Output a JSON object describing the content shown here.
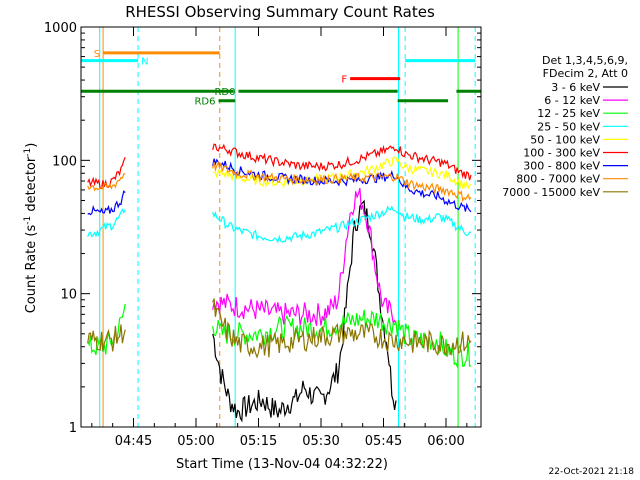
{
  "chart_data": {
    "type": "line",
    "title": "RHESSI Observing Summary Count Rates",
    "xlabel": "Start Time (13-Nov-04 04:32:22)",
    "ylabel": "Count Rate (s⁻¹ detector⁻¹)",
    "ylabel_parts": {
      "main": "Count Rate (s",
      "exp1": "-1",
      "mid": " detector",
      "exp2": "-1",
      "end": ")"
    },
    "yscale": "log",
    "xlim": [
      32.4,
      128.4
    ],
    "ylim": [
      1,
      1000
    ],
    "x_units": "minutes after 04:00 UT",
    "x_ticks": [
      {
        "x": 45,
        "label": "04:45"
      },
      {
        "x": 60,
        "label": "05:00"
      },
      {
        "x": 75,
        "label": "05:15"
      },
      {
        "x": 90,
        "label": "05:30"
      },
      {
        "x": 105,
        "label": "05:45"
      },
      {
        "x": 120,
        "label": "06:00"
      }
    ],
    "y_ticks": [
      {
        "y": 1,
        "label": "1"
      },
      {
        "y": 10,
        "label": "10"
      },
      {
        "y": 100,
        "label": "100"
      },
      {
        "y": 1000,
        "label": "1000"
      }
    ],
    "legend_header": [
      "Det 1,3,4,5,6,9,",
      "FDecim 2, Att 0"
    ],
    "legend_position": "right",
    "series": [
      {
        "name": "3 - 6 keV",
        "color": "#000000",
        "x": [
          36,
          37,
          38,
          39,
          40,
          41,
          42,
          43,
          64,
          66,
          68,
          70,
          72,
          74,
          76,
          78,
          80,
          82,
          84,
          86,
          88,
          90,
          92,
          94,
          95,
          96,
          97,
          98,
          99,
          100,
          101,
          102,
          103,
          104,
          105,
          106,
          107,
          108
        ],
        "values": [
          null,
          null,
          null,
          null,
          null,
          null,
          null,
          null,
          5,
          2.5,
          1.6,
          1.3,
          1.4,
          1.5,
          1.6,
          1.4,
          1.3,
          1.5,
          1.6,
          2,
          1.7,
          1.6,
          2,
          2.6,
          4,
          8,
          16,
          30,
          40,
          45,
          38,
          30,
          18,
          10,
          6,
          4,
          2,
          1.5
        ]
      },
      {
        "name": "6 - 12 keV",
        "color": "#ff00ff",
        "x": [
          36,
          37,
          38,
          39,
          40,
          41,
          42,
          43,
          64,
          66,
          70,
          75,
          80,
          85,
          90,
          92,
          94,
          95,
          96,
          97,
          98,
          99,
          100,
          101,
          102,
          103,
          104,
          105,
          106,
          108
        ],
        "values": [
          null,
          null,
          null,
          null,
          null,
          null,
          null,
          null,
          9,
          8.5,
          8,
          7.5,
          7,
          7,
          7,
          7.5,
          9,
          14,
          25,
          40,
          52,
          55,
          48,
          38,
          26,
          16,
          11,
          8,
          7.5,
          7
        ]
      },
      {
        "name": "12 - 25 keV",
        "color": "#00ff00",
        "x": [
          34,
          36,
          38,
          40,
          42,
          43,
          64,
          66,
          70,
          75,
          80,
          85,
          90,
          95,
          100,
          104,
          106,
          108,
          110,
          112,
          114,
          116,
          118,
          120,
          122,
          124,
          126
        ],
        "values": [
          4,
          4,
          4,
          4.5,
          6,
          8,
          6,
          5,
          5,
          5,
          5.5,
          5.5,
          5.5,
          6,
          6.5,
          6.5,
          6,
          6,
          5,
          4.5,
          4.5,
          4.5,
          4.5,
          3.8,
          3.5,
          3.5,
          3.5
        ]
      },
      {
        "name": "25 - 50 keV",
        "color": "#00ffff",
        "x": [
          34,
          36,
          38,
          40,
          42,
          43,
          64,
          66,
          68,
          70,
          75,
          80,
          85,
          90,
          95,
          100,
          104,
          106,
          108,
          110,
          112,
          114,
          116,
          118,
          120,
          122,
          124,
          126
        ],
        "values": [
          28,
          29,
          31,
          33,
          38,
          45,
          40,
          36,
          32,
          30,
          27,
          26,
          27,
          29,
          32,
          36,
          40,
          42,
          44,
          38,
          37,
          36,
          36,
          38,
          36,
          33,
          30,
          28
        ]
      },
      {
        "name": "50 - 100 keV",
        "color": "#ffff00",
        "x": [
          64,
          66,
          68,
          70,
          75,
          80,
          85,
          90,
          95,
          100,
          104,
          106,
          108,
          110,
          112,
          114,
          116,
          118,
          120,
          122,
          124,
          126
        ],
        "values": [
          78,
          80,
          78,
          74,
          70,
          68,
          70,
          72,
          76,
          82,
          90,
          96,
          100,
          90,
          86,
          84,
          82,
          80,
          78,
          72,
          66,
          62
        ]
      },
      {
        "name": "100 - 300 keV",
        "color": "#ff0000",
        "x": [
          34,
          36,
          38,
          40,
          42,
          43,
          64,
          66,
          68,
          70,
          75,
          80,
          85,
          90,
          95,
          100,
          104,
          106,
          108,
          110,
          112,
          114,
          116,
          118,
          120,
          122,
          124,
          126
        ],
        "values": [
          68,
          67,
          66,
          70,
          84,
          98,
          128,
          123,
          120,
          114,
          104,
          97,
          91,
          90,
          94,
          104,
          114,
          120,
          128,
          112,
          108,
          104,
          100,
          98,
          94,
          86,
          80,
          76
        ]
      },
      {
        "name": "300 - 800 keV",
        "color": "#0000ff",
        "x": [
          34,
          36,
          38,
          40,
          42,
          43,
          64,
          66,
          68,
          70,
          75,
          80,
          85,
          90,
          95,
          100,
          104,
          106,
          108,
          110,
          112,
          114,
          116,
          118,
          120,
          122,
          124,
          126
        ],
        "values": [
          42,
          41,
          40,
          43,
          50,
          58,
          98,
          95,
          90,
          84,
          78,
          74,
          72,
          70,
          70,
          72,
          74,
          76,
          78,
          64,
          60,
          57,
          55,
          54,
          50,
          47,
          44,
          42
        ]
      },
      {
        "name": "800 - 7000 keV",
        "color": "#ff8c00",
        "x": [
          34,
          36,
          38,
          40,
          42,
          43,
          64,
          66,
          68,
          70,
          75,
          80,
          85,
          90,
          95,
          100,
          104,
          106,
          108,
          110,
          112,
          114,
          116,
          118,
          120,
          122,
          124,
          126
        ],
        "values": [
          65,
          63,
          62,
          64,
          74,
          82,
          92,
          88,
          84,
          80,
          76,
          73,
          72,
          72,
          73,
          74,
          75,
          75,
          76,
          70,
          66,
          64,
          62,
          61,
          60,
          57,
          54,
          52
        ]
      },
      {
        "name": "7000 - 15000 keV",
        "color": "#8b7500",
        "x": [
          34,
          36,
          38,
          40,
          42,
          43,
          64,
          66,
          68,
          70,
          75,
          80,
          85,
          90,
          95,
          100,
          104,
          106,
          108,
          110,
          112,
          114,
          116,
          118,
          120,
          122,
          124,
          126
        ],
        "values": [
          4.5,
          4.5,
          4.5,
          4.5,
          5,
          5.5,
          8,
          6,
          5,
          4.2,
          4,
          4.2,
          4.5,
          4.8,
          5,
          5,
          4.8,
          4.5,
          4.5,
          4.5,
          4.3,
          4.3,
          4.3,
          4.2,
          4.2,
          4.3,
          4.3,
          4.3
        ]
      }
    ],
    "vertical_lines": [
      {
        "x": 36.9,
        "color": "#00ffff",
        "style": "solid"
      },
      {
        "x": 37.7,
        "color": "#ff8c00",
        "style": "solid"
      },
      {
        "x": 46.1,
        "color": "#00ffff",
        "style": "dashed"
      },
      {
        "x": 65.7,
        "color": "#ff8c00",
        "style": "dashed"
      },
      {
        "x": 69.4,
        "color": "#00ffff",
        "style": "solid"
      },
      {
        "x": 108.6,
        "color": "#00ffff",
        "style": "solid"
      },
      {
        "x": 110.2,
        "color": "#00ffff",
        "style": "dashed"
      },
      {
        "x": 122.9,
        "color": "#00ff00",
        "style": "solid"
      },
      {
        "x": 127.0,
        "color": "#00ffff",
        "style": "dashed"
      }
    ],
    "status_bars": [
      {
        "label": "S",
        "color": "#ff8c00",
        "x1": 37.7,
        "x2": 65.7,
        "y": 640,
        "label_side": "left"
      },
      {
        "label": "N",
        "color": "#00ffff",
        "x1": 32.4,
        "x2": 46.1,
        "y": 560,
        "label_side": "right"
      },
      {
        "label": "N",
        "color": "#00ffff",
        "x1": 110.2,
        "x2": 127.0,
        "y": 560,
        "label_side": "none"
      },
      {
        "label": "F",
        "color": "#ff0000",
        "x1": 97.0,
        "x2": 109.0,
        "y": 410,
        "label_side": "left"
      },
      {
        "label": "RD0",
        "color": "#008000",
        "x1": 32.4,
        "x2": 69.0,
        "y": 330,
        "label_side": "none"
      },
      {
        "label": "RD0",
        "color": "#008000",
        "x1": 70.2,
        "x2": 108.4,
        "y": 330,
        "label_side": "left"
      },
      {
        "label": "",
        "color": "#008000",
        "x1": 122.5,
        "x2": 128.4,
        "y": 330,
        "label_side": "none"
      },
      {
        "label": "RD6",
        "color": "#008000",
        "x1": 65.4,
        "x2": 69.4,
        "y": 280,
        "label_side": "left"
      },
      {
        "label": "",
        "color": "#008000",
        "x1": 108.4,
        "x2": 120.5,
        "y": 280,
        "label_side": "none"
      }
    ],
    "grid": false,
    "footer": "22-Oct-2021 21:18"
  }
}
